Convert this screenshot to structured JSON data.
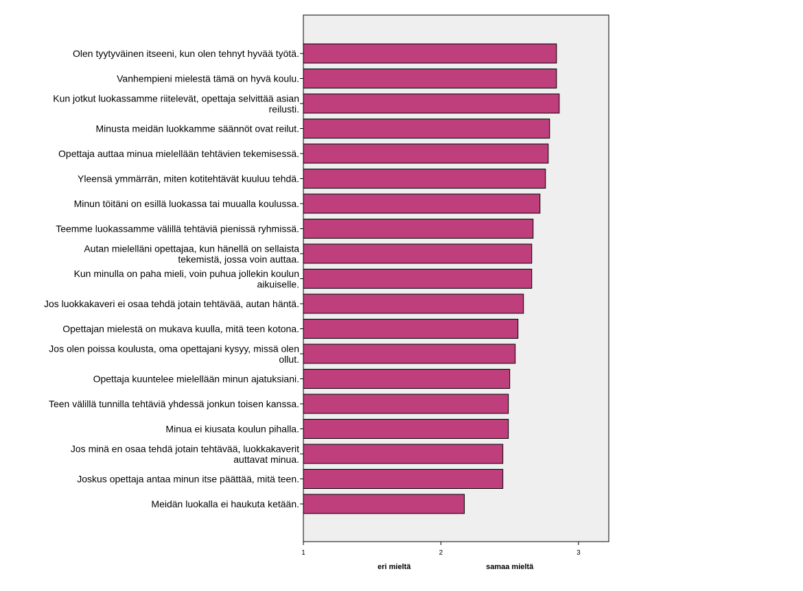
{
  "chart_data": {
    "type": "bar",
    "orientation": "horizontal",
    "categories": [
      [
        "Olen tyytyväinen itseeni, kun olen tehnyt hyvää työtä."
      ],
      [
        "Vanhempieni mielestä tämä on hyvä koulu."
      ],
      [
        "Kun jotkut luokassamme riitelevät, opettaja selvittää asian",
        "reilusti."
      ],
      [
        "Minusta meidän luokkamme säännöt ovat reilut."
      ],
      [
        "Opettaja auttaa minua mielellään tehtävien tekemisessä."
      ],
      [
        "Yleensä ymmärrän, miten kotitehtävät kuuluu tehdä."
      ],
      [
        "Minun töitäni on esillä luokassa tai muualla koulussa."
      ],
      [
        "Teemme luokassamme välillä tehtäviä pienissä ryhmissä."
      ],
      [
        "Autan mielelläni opettajaa, kun hänellä on sellaista",
        "tekemistä, jossa voin auttaa."
      ],
      [
        "Kun minulla on paha mieli, voin puhua jollekin koulun",
        "aikuiselle."
      ],
      [
        "Jos luokkakaveri ei osaa tehdä jotain tehtävää, autan häntä."
      ],
      [
        "Opettajan mielestä on mukava kuulla, mitä teen kotona."
      ],
      [
        "Jos olen poissa koulusta, oma opettajani kysyy, missä olen",
        "ollut."
      ],
      [
        "Opettaja kuuntelee mielellään minun ajatuksiani."
      ],
      [
        "Teen välillä tunnilla tehtäviä yhdessä jonkun toisen kanssa."
      ],
      [
        "Minua ei kiusata koulun pihalla."
      ],
      [
        "Jos minä en osaa tehdä jotain tehtävää, luokkakaverit",
        "auttavat minua."
      ],
      [
        "Joskus opettaja antaa minun itse päättää, mitä teen."
      ],
      [
        "Meidän luokalla ei haukuta ketään."
      ]
    ],
    "values": [
      2.84,
      2.84,
      2.86,
      2.79,
      2.78,
      2.76,
      2.72,
      2.67,
      2.66,
      2.66,
      2.6,
      2.56,
      2.54,
      2.5,
      2.49,
      2.49,
      2.45,
      2.45,
      2.17
    ],
    "xlim": [
      1,
      3.22
    ],
    "xticks": [
      "1",
      "2",
      "3"
    ],
    "xtick_values": [
      1,
      2,
      3
    ],
    "anchor_labels": [
      {
        "text": "eri mieltä",
        "value": 1.66
      },
      {
        "text": "samaa mieltä",
        "value": 2.5
      }
    ],
    "bar_color": "#be3f7b",
    "plot_background": "#efefef",
    "grid": false,
    "legend": "none"
  }
}
